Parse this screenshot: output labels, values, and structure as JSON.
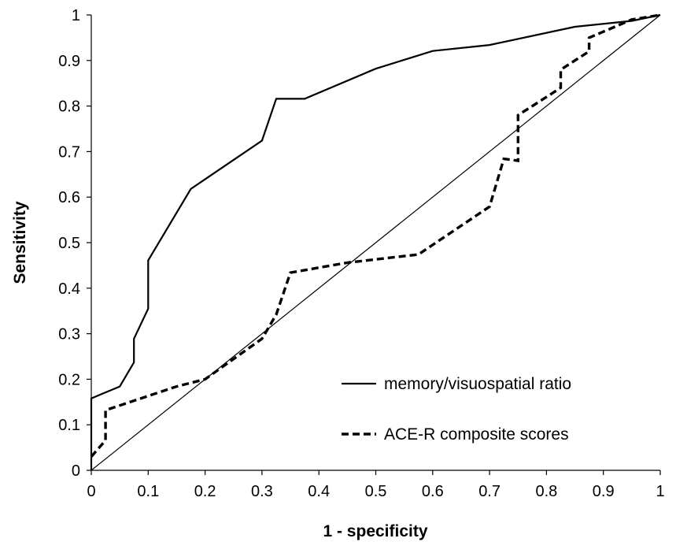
{
  "chart_data": {
    "type": "line",
    "title": "",
    "xlabel": "1 - specificity",
    "ylabel": "Sensitivity",
    "xlim": [
      0,
      1
    ],
    "ylim": [
      0,
      1
    ],
    "x_ticks": [
      "0",
      "0.1",
      "0.2",
      "0.3",
      "0.4",
      "0.5",
      "0.6",
      "0.7",
      "0.8",
      "0.9",
      "1"
    ],
    "y_ticks": [
      "0",
      "0.1",
      "0.2",
      "0.3",
      "0.4",
      "0.5",
      "0.6",
      "0.7",
      "0.8",
      "0.9",
      "1"
    ],
    "grid": false,
    "legend_position": "bottom-right",
    "series": [
      {
        "name": "memory/visuospatial ratio",
        "style": "solid",
        "color": "#000000",
        "points": [
          [
            0,
            0
          ],
          [
            0,
            0.158
          ],
          [
            0.05,
            0.184
          ],
          [
            0.075,
            0.237
          ],
          [
            0.075,
            0.289
          ],
          [
            0.1,
            0.355
          ],
          [
            0.1,
            0.461
          ],
          [
            0.175,
            0.618
          ],
          [
            0.3,
            0.724
          ],
          [
            0.325,
            0.816
          ],
          [
            0.375,
            0.816
          ],
          [
            0.5,
            0.882
          ],
          [
            0.6,
            0.921
          ],
          [
            0.7,
            0.934
          ],
          [
            0.85,
            0.974
          ],
          [
            0.95,
            0.987
          ],
          [
            1,
            1
          ]
        ]
      },
      {
        "name": "ACE-R composite scores",
        "style": "dashed",
        "color": "#000000",
        "points": [
          [
            0,
            0.03
          ],
          [
            0.025,
            0.066
          ],
          [
            0.025,
            0.132
          ],
          [
            0.15,
            0.184
          ],
          [
            0.2,
            0.2
          ],
          [
            0.3,
            0.289
          ],
          [
            0.325,
            0.342
          ],
          [
            0.35,
            0.434
          ],
          [
            0.45,
            0.456
          ],
          [
            0.575,
            0.474
          ],
          [
            0.7,
            0.579
          ],
          [
            0.725,
            0.684
          ],
          [
            0.75,
            0.68
          ],
          [
            0.75,
            0.78
          ],
          [
            0.825,
            0.84
          ],
          [
            0.825,
            0.88
          ],
          [
            0.875,
            0.92
          ],
          [
            0.875,
            0.95
          ],
          [
            0.95,
            0.99
          ],
          [
            1,
            1
          ]
        ]
      },
      {
        "name": "",
        "style": "reference-diagonal",
        "color": "#000000",
        "points": [
          [
            0,
            0
          ],
          [
            1,
            1
          ]
        ]
      }
    ]
  }
}
